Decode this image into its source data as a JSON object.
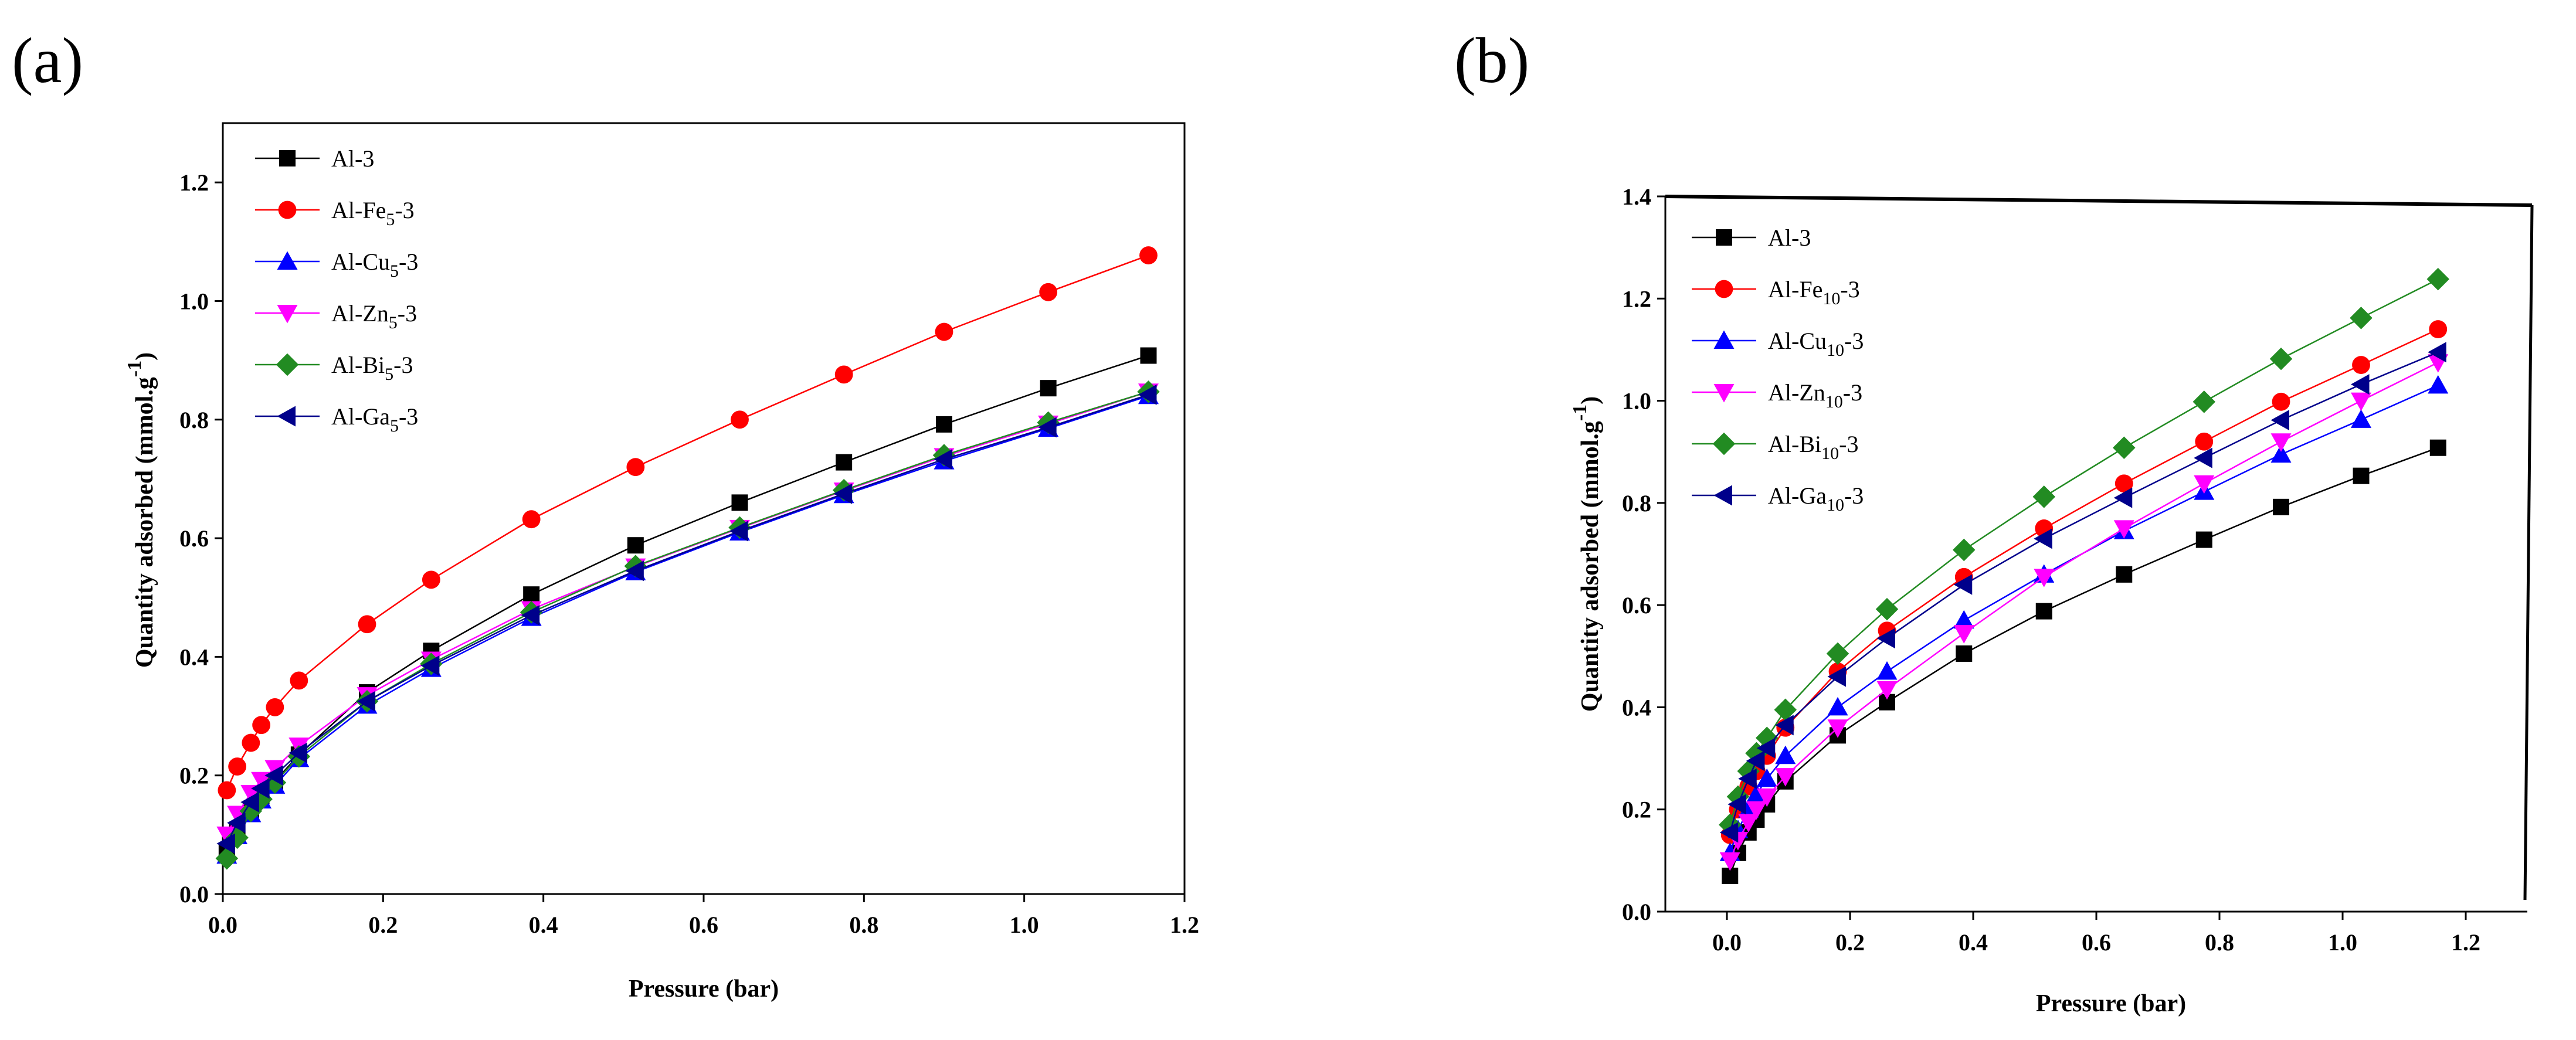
{
  "charts": [
    {
      "panel_label": "(a)",
      "chart_data": {
        "type": "line",
        "xlabel": "Pressure (bar)",
        "ylabel": "Quantity adsorbed (mmol.g",
        "ylabel_sup": "-1",
        "ylabel_close": ")",
        "xlim": [
          0,
          1.2
        ],
        "ylim": [
          0,
          1.3
        ],
        "xticks": [
          0.0,
          0.2,
          0.4,
          0.6,
          0.8,
          1.0,
          1.2
        ],
        "xtick_labels": [
          "0.0",
          "0.2",
          "0.4",
          "0.6",
          "0.8",
          "1.0",
          "1.2"
        ],
        "yticks": [
          0.0,
          0.2,
          0.4,
          0.6,
          0.8,
          1.0,
          1.2
        ],
        "ytick_labels": [
          "0.0",
          "0.2",
          "0.4",
          "0.6",
          "0.8",
          "1.0",
          "1.2"
        ],
        "legend_position": "top-left",
        "series": [
          {
            "name": "Al-3",
            "label_main": "Al-3",
            "label_sub": "",
            "label_tail": "",
            "color": "#000000",
            "marker": "square",
            "x": [
              0.005,
              0.018,
              0.035,
              0.048,
              0.065,
              0.095,
              0.18,
              0.26,
              0.385,
              0.515,
              0.645,
              0.775,
              0.9,
              1.03,
              1.155
            ],
            "y": [
              0.07,
              0.105,
              0.14,
              0.165,
              0.19,
              0.235,
              0.34,
              0.41,
              0.505,
              0.588,
              0.66,
              0.728,
              0.792,
              0.853,
              0.908
            ]
          },
          {
            "name": "Al-Fe5-3",
            "label_main": "Al-Fe",
            "label_sub": "5",
            "label_tail": "-3",
            "color": "#ff0000",
            "marker": "circle",
            "x": [
              0.005,
              0.018,
              0.035,
              0.048,
              0.065,
              0.095,
              0.18,
              0.26,
              0.385,
              0.515,
              0.645,
              0.775,
              0.9,
              1.03,
              1.155
            ],
            "y": [
              0.175,
              0.215,
              0.255,
              0.285,
              0.315,
              0.36,
              0.455,
              0.53,
              0.632,
              0.72,
              0.8,
              0.876,
              0.948,
              1.015,
              1.077
            ]
          },
          {
            "name": "Al-Cu5-3",
            "label_main": "Al-Cu",
            "label_sub": "5",
            "label_tail": "-3",
            "color": "#0000ff",
            "marker": "triangle-up",
            "x": [
              0.005,
              0.018,
              0.035,
              0.048,
              0.065,
              0.095,
              0.18,
              0.26,
              0.385,
              0.515,
              0.645,
              0.775,
              0.9,
              1.03,
              1.155
            ],
            "y": [
              0.065,
              0.098,
              0.135,
              0.158,
              0.183,
              0.228,
              0.318,
              0.38,
              0.466,
              0.543,
              0.61,
              0.673,
              0.73,
              0.785,
              0.84
            ]
          },
          {
            "name": "Al-Zn5-3",
            "label_main": "Al-Zn",
            "label_sub": "5",
            "label_tail": "-3",
            "color": "#ff00ff",
            "marker": "triangle-down",
            "x": [
              0.005,
              0.018,
              0.035,
              0.048,
              0.065,
              0.095,
              0.18,
              0.26,
              0.385,
              0.515,
              0.645,
              0.775,
              0.9,
              1.03,
              1.155
            ],
            "y": [
              0.1,
              0.135,
              0.17,
              0.192,
              0.212,
              0.25,
              0.335,
              0.395,
              0.48,
              0.552,
              0.617,
              0.68,
              0.738,
              0.793,
              0.847
            ]
          },
          {
            "name": "Al-Bi5-3",
            "label_main": "Al-Bi",
            "label_sub": "5",
            "label_tail": "-3",
            "color": "#228b22",
            "marker": "diamond",
            "x": [
              0.005,
              0.018,
              0.035,
              0.048,
              0.065,
              0.095,
              0.18,
              0.26,
              0.385,
              0.515,
              0.645,
              0.775,
              0.9,
              1.03,
              1.155
            ],
            "y": [
              0.06,
              0.095,
              0.14,
              0.16,
              0.188,
              0.232,
              0.325,
              0.388,
              0.475,
              0.553,
              0.618,
              0.681,
              0.74,
              0.795,
              0.847
            ]
          },
          {
            "name": "Al-Ga5-3",
            "label_main": "Al-Ga",
            "label_sub": "5",
            "label_tail": "-3",
            "color": "#00008b",
            "marker": "triangle-left",
            "x": [
              0.005,
              0.018,
              0.035,
              0.048,
              0.065,
              0.095,
              0.18,
              0.26,
              0.385,
              0.515,
              0.645,
              0.775,
              0.9,
              1.03,
              1.155
            ],
            "y": [
              0.085,
              0.12,
              0.155,
              0.178,
              0.2,
              0.238,
              0.325,
              0.385,
              0.47,
              0.545,
              0.612,
              0.675,
              0.733,
              0.787,
              0.842
            ]
          }
        ]
      }
    },
    {
      "panel_label": "(b)",
      "chart_data": {
        "type": "line",
        "xlabel": "Pressure (bar)",
        "ylabel": "Quantity adsorbed (mmol.g",
        "ylabel_sup": "-1",
        "ylabel_close": ")",
        "xlim": [
          -0.1,
          1.3
        ],
        "ylim": [
          0,
          1.4
        ],
        "xticks": [
          0.0,
          0.2,
          0.4,
          0.6,
          0.8,
          1.0,
          1.2
        ],
        "xtick_labels": [
          "0.0",
          "0.2",
          "0.4",
          "0.6",
          "0.8",
          "1.0",
          "1.2"
        ],
        "yticks": [
          0.0,
          0.2,
          0.4,
          0.6,
          0.8,
          1.0,
          1.2,
          1.4
        ],
        "ytick_labels": [
          "0.0",
          "0.2",
          "0.4",
          "0.6",
          "0.8",
          "1.0",
          "1.2",
          "1.4"
        ],
        "legend_position": "top-left",
        "series": [
          {
            "name": "Al-3",
            "label_main": "Al-3",
            "label_sub": "",
            "label_tail": "",
            "color": "#000000",
            "marker": "square",
            "x": [
              0.005,
              0.018,
              0.035,
              0.048,
              0.065,
              0.095,
              0.18,
              0.26,
              0.385,
              0.515,
              0.645,
              0.775,
              0.9,
              1.03,
              1.155
            ],
            "y": [
              0.07,
              0.115,
              0.155,
              0.18,
              0.21,
              0.255,
              0.345,
              0.41,
              0.505,
              0.588,
              0.66,
              0.728,
              0.792,
              0.853,
              0.908
            ]
          },
          {
            "name": "Al-Fe10-3",
            "label_main": "Al-Fe",
            "label_sub": "10",
            "label_tail": "-3",
            "color": "#ff0000",
            "marker": "circle",
            "x": [
              0.005,
              0.018,
              0.035,
              0.048,
              0.065,
              0.095,
              0.18,
              0.26,
              0.385,
              0.515,
              0.645,
              0.775,
              0.9,
              1.03,
              1.155
            ],
            "y": [
              0.15,
              0.2,
              0.245,
              0.275,
              0.305,
              0.36,
              0.47,
              0.55,
              0.655,
              0.75,
              0.838,
              0.92,
              0.998,
              1.07,
              1.14
            ]
          },
          {
            "name": "Al-Cu10-3",
            "label_main": "Al-Cu",
            "label_sub": "10",
            "label_tail": "-3",
            "color": "#0000ff",
            "marker": "triangle-up",
            "x": [
              0.005,
              0.018,
              0.035,
              0.048,
              0.065,
              0.095,
              0.18,
              0.26,
              0.385,
              0.515,
              0.645,
              0.775,
              0.9,
              1.03,
              1.155
            ],
            "y": [
              0.115,
              0.16,
              0.2,
              0.23,
              0.26,
              0.305,
              0.4,
              0.47,
              0.57,
              0.66,
              0.745,
              0.822,
              0.895,
              0.963,
              1.03
            ]
          },
          {
            "name": "Al-Zn10-3",
            "label_main": "Al-Zn",
            "label_sub": "10",
            "label_tail": "-3",
            "color": "#ff00ff",
            "marker": "triangle-down",
            "x": [
              0.005,
              0.018,
              0.035,
              0.048,
              0.065,
              0.095,
              0.18,
              0.26,
              0.385,
              0.515,
              0.645,
              0.775,
              0.9,
              1.03,
              1.155
            ],
            "y": [
              0.1,
              0.14,
              0.175,
              0.2,
              0.225,
              0.265,
              0.36,
              0.435,
              0.545,
              0.655,
              0.75,
              0.838,
              0.92,
              1.0,
              1.075
            ]
          },
          {
            "name": "Al-Bi10-3",
            "label_main": "Al-Bi",
            "label_sub": "10",
            "label_tail": "-3",
            "color": "#228b22",
            "marker": "diamond",
            "x": [
              0.005,
              0.018,
              0.035,
              0.048,
              0.065,
              0.095,
              0.18,
              0.26,
              0.385,
              0.515,
              0.645,
              0.775,
              0.9,
              1.03,
              1.155
            ],
            "y": [
              0.17,
              0.225,
              0.275,
              0.31,
              0.34,
              0.395,
              0.505,
              0.592,
              0.708,
              0.812,
              0.908,
              0.998,
              1.082,
              1.162,
              1.238
            ]
          },
          {
            "name": "Al-Ga10-3",
            "label_main": "Al-Ga",
            "label_sub": "10",
            "label_tail": "-3",
            "color": "#00008b",
            "marker": "triangle-left",
            "x": [
              0.005,
              0.018,
              0.035,
              0.048,
              0.065,
              0.095,
              0.18,
              0.26,
              0.385,
              0.515,
              0.645,
              0.775,
              0.9,
              1.03,
              1.155
            ],
            "y": [
              0.155,
              0.21,
              0.26,
              0.295,
              0.32,
              0.365,
              0.46,
              0.535,
              0.64,
              0.73,
              0.81,
              0.888,
              0.962,
              1.032,
              1.095
            ]
          }
        ]
      }
    }
  ]
}
